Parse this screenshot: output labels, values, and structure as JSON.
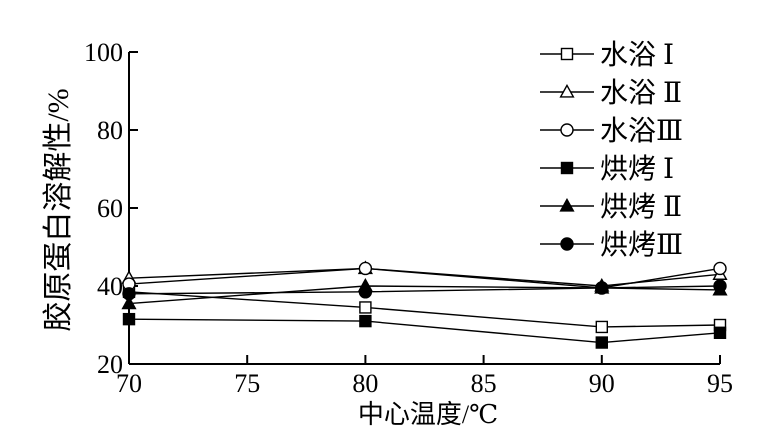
{
  "chart_data": {
    "type": "line",
    "title": "",
    "xlabel": "中心温度/℃",
    "ylabel": "胶原蛋白溶解性/%",
    "x": [
      70,
      80,
      90,
      95
    ],
    "x_ticks": [
      70,
      75,
      80,
      85,
      90,
      95
    ],
    "y_ticks": [
      20,
      40,
      60,
      80,
      100
    ],
    "xlim": [
      70,
      95
    ],
    "ylim": [
      20,
      100
    ],
    "grid": false,
    "legend_position": "top-right",
    "series": [
      {
        "name": "水浴 Ⅰ",
        "marker": "square-open",
        "values": [
          38.5,
          34.5,
          29.5,
          30.0
        ]
      },
      {
        "name": "水浴 Ⅱ",
        "marker": "triangle-open",
        "values": [
          42.0,
          44.5,
          40.0,
          43.0
        ]
      },
      {
        "name": "水浴Ⅲ",
        "marker": "circle-open",
        "values": [
          40.5,
          44.5,
          39.5,
          44.5
        ]
      },
      {
        "name": "烘烤 Ⅰ",
        "marker": "square-filled",
        "values": [
          31.5,
          31.0,
          25.5,
          28.0
        ]
      },
      {
        "name": "烘烤 Ⅱ",
        "marker": "triangle-filled",
        "values": [
          35.5,
          40.0,
          39.5,
          39.0
        ]
      },
      {
        "name": "烘烤Ⅲ",
        "marker": "circle-filled",
        "values": [
          38.0,
          38.5,
          39.5,
          40.0
        ]
      }
    ]
  }
}
